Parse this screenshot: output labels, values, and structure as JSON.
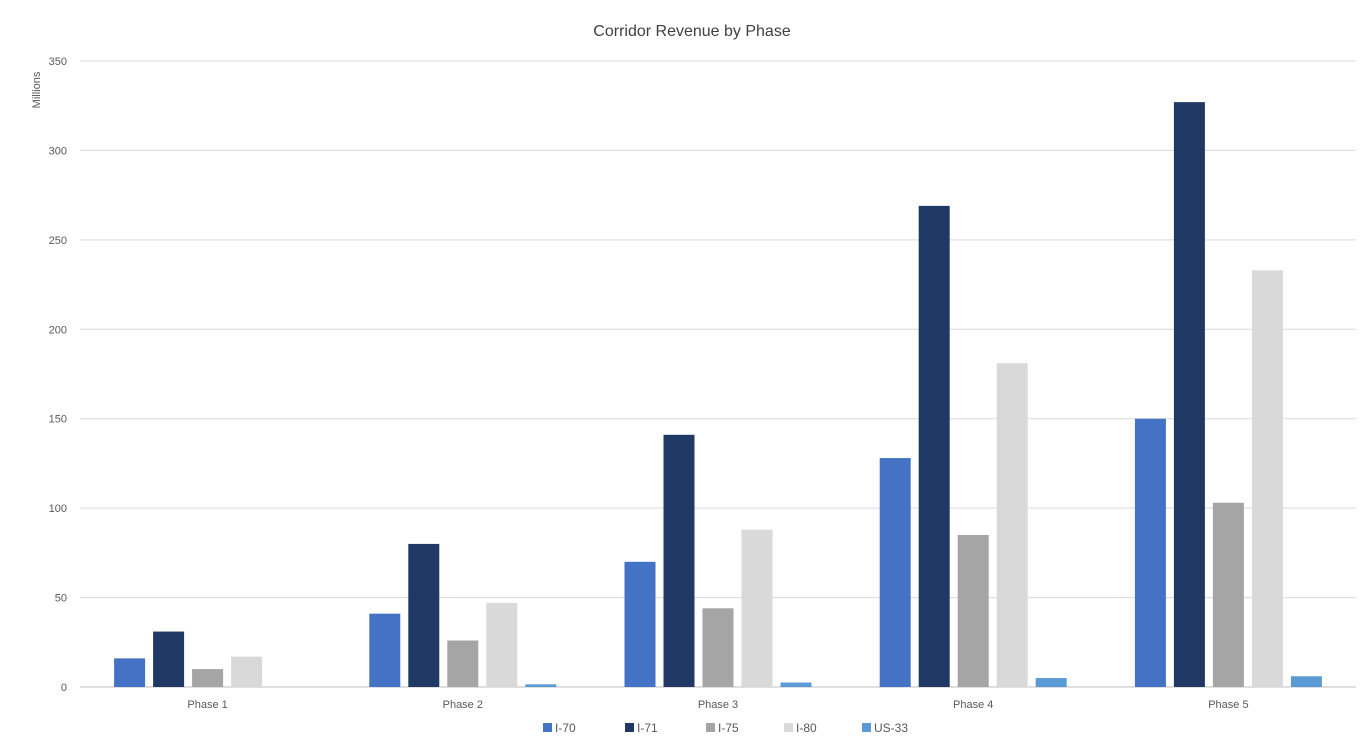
{
  "chart_data": {
    "type": "bar",
    "title": "Corridor Revenue by Phase",
    "ylabel": "Millions",
    "xlabel": "",
    "ylim": [
      0,
      350
    ],
    "yticks": [
      0,
      50,
      100,
      150,
      200,
      250,
      300,
      350
    ],
    "grid": true,
    "legend_position": "bottom",
    "categories": [
      "Phase 1",
      "Phase 2",
      "Phase 3",
      "Phase 4",
      "Phase 5"
    ],
    "series": [
      {
        "name": "I-70",
        "color": "#4472C4",
        "values": [
          16,
          41,
          70,
          128,
          150
        ]
      },
      {
        "name": "I-71",
        "color": "#203864",
        "values": [
          31,
          80,
          141,
          269,
          327
        ]
      },
      {
        "name": "I-75",
        "color": "#A5A5A5",
        "values": [
          10,
          26,
          44,
          85,
          103
        ]
      },
      {
        "name": "I-80",
        "color": "#D9D9D9",
        "values": [
          17,
          47,
          88,
          181,
          233
        ]
      },
      {
        "name": "US-33",
        "color": "#5B9BD5",
        "values": [
          0,
          1.5,
          2.5,
          5,
          6
        ]
      }
    ]
  }
}
